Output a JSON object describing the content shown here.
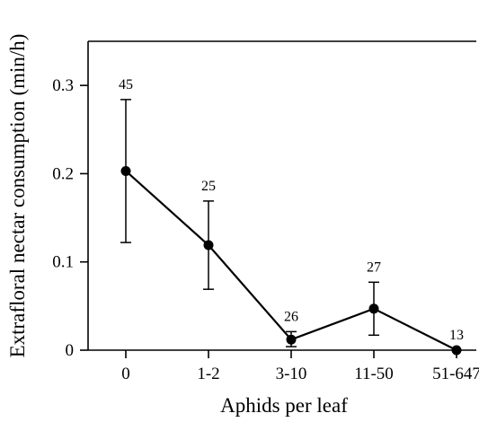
{
  "chart_data": {
    "type": "line",
    "title": "",
    "xlabel": "Aphids per leaf",
    "ylabel": "Extrafloral nectar consumption (min/h)",
    "categories": [
      "0",
      "1-2",
      "3-10",
      "11-50",
      "51-647"
    ],
    "series": [
      {
        "values": [
          0.203,
          0.119,
          0.012,
          0.047,
          0.0
        ],
        "error_low": [
          0.122,
          0.069,
          0.004,
          0.017,
          0.0
        ],
        "error_high": [
          0.284,
          0.169,
          0.021,
          0.077,
          0.0
        ],
        "sample_sizes": [
          "45",
          "25",
          "26",
          "27",
          "13"
        ]
      }
    ],
    "ylim": [
      0,
      0.35
    ],
    "yticks": [
      0,
      0.1,
      0.2,
      0.3
    ],
    "ytick_labels": [
      "0",
      "0.1",
      "0.2",
      "0.3"
    ],
    "grid": false,
    "legend": "none",
    "colors": {
      "line": "#000000",
      "marker": "#000000"
    }
  }
}
